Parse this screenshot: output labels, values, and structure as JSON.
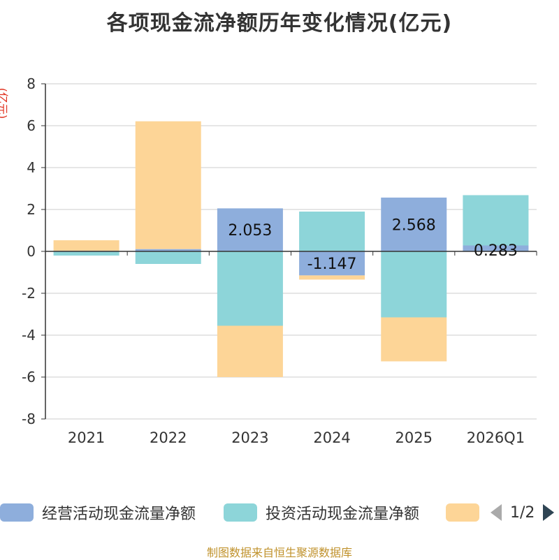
{
  "page_title": "各项现金流净额历年变化情况(亿元)",
  "y_unit_label": "(亿元)",
  "footer_text": "制图数据来自恒生聚源数据库",
  "legend": {
    "items": [
      {
        "label": "经营活动现金流量净额",
        "color": "#8eaedc"
      },
      {
        "label": "投资活动现金流量净额",
        "color": "#8dd5d9"
      },
      {
        "label": "",
        "color": "#fdd597"
      }
    ],
    "page_text": "1/2"
  },
  "chart_data": {
    "type": "bar",
    "stacked": true,
    "title": "各项现金流净额历年变化情况(亿元)",
    "ylabel": "(亿元)",
    "ylim": [
      -8,
      8
    ],
    "yticks": [
      8,
      6,
      4,
      2,
      0,
      -2,
      -4,
      -6,
      -8
    ],
    "categories": [
      "2021",
      "2022",
      "2023",
      "2024",
      "2025",
      "2026Q1"
    ],
    "series": [
      {
        "name": "经营活动现金流量净额",
        "color": "#8eaedc",
        "values": [
          0.03,
          0.11,
          2.053,
          -1.147,
          2.568,
          0.283
        ],
        "labels": [
          "",
          "",
          "2.053",
          "-1.147",
          "2.568",
          "0.283"
        ]
      },
      {
        "name": "投资活动现金流量净额",
        "color": "#8dd5d9",
        "values": [
          -0.2,
          -0.6,
          -3.55,
          1.9,
          -3.15,
          2.4
        ],
        "labels": [
          "",
          "",
          "",
          "",
          "",
          ""
        ]
      },
      {
        "name": "",
        "color": "#fdd597",
        "values": [
          0.5,
          6.1,
          -2.45,
          -0.2,
          -2.1,
          0.0
        ],
        "labels": [
          "",
          "",
          "",
          "",
          "",
          ""
        ]
      }
    ]
  }
}
